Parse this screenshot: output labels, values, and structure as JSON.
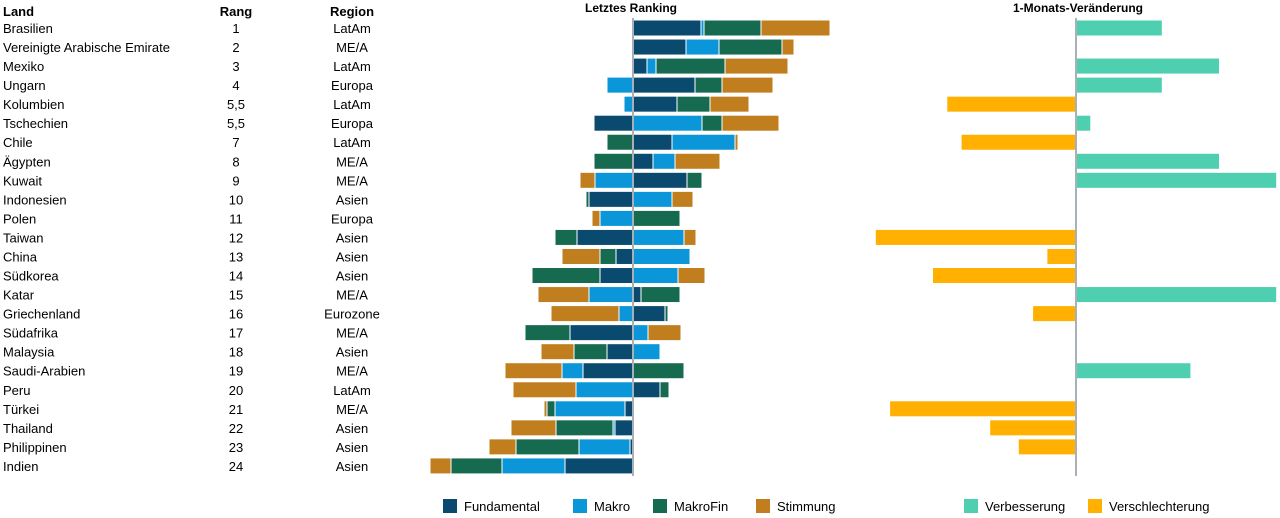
{
  "chart_data": [
    {
      "type": "bar",
      "title": "Letztes Ranking",
      "stacked": true,
      "orientation": "horizontal",
      "columns": {
        "land": "Land",
        "rang": "Rang",
        "region": "Region"
      },
      "categories": [
        "Brasilien",
        "Vereinigte Arabische Emirate",
        "Mexiko",
        "Ungarn",
        "Kolumbien",
        "Tschechien",
        "Chile",
        "Ägypten",
        "Kuwait",
        "Indonesien",
        "Polen",
        "Taiwan",
        "China",
        "Südkorea",
        "Katar",
        "Griechenland",
        "Südafrika",
        "Malaysia",
        "Saudi-Arabien",
        "Peru",
        "Türkei",
        "Thailand",
        "Philippinen",
        "Indien"
      ],
      "rang": [
        "1",
        "2",
        "3",
        "4",
        "5,5",
        "5,5",
        "7",
        "8",
        "9",
        "10",
        "11",
        "12",
        "13",
        "14",
        "15",
        "16",
        "17",
        "18",
        "19",
        "20",
        "21",
        "22",
        "23",
        "24"
      ],
      "region": [
        "LatAm",
        "ME/A",
        "LatAm",
        "Europa",
        "LatAm",
        "Europa",
        "LatAm",
        "ME/A",
        "ME/A",
        "Asien",
        "Europa",
        "Asien",
        "Asien",
        "Asien",
        "ME/A",
        "Eurozone",
        "ME/A",
        "Asien",
        "ME/A",
        "LatAm",
        "ME/A",
        "Asien",
        "Asien",
        "Asien"
      ],
      "series": [
        {
          "name": "Fundamental",
          "color": "#0b4a6f",
          "values": [
            6.8,
            5.3,
            1.4,
            6.2,
            4.4,
            -3.9,
            3.9,
            2.0,
            5.4,
            -4.4,
            0,
            -5.6,
            -1.7,
            -3.3,
            0.8,
            3.2,
            -6.3,
            -2.6,
            -5.0,
            2.7,
            -0.8,
            -1.8,
            -0.3,
            -6.8
          ]
        },
        {
          "name": "Makro",
          "color": "#0a96d8",
          "values": [
            0.3,
            3.3,
            0.9,
            -2.6,
            -0.9,
            6.9,
            6.3,
            2.2,
            -3.8,
            3.9,
            -3.3,
            5.1,
            5.7,
            4.5,
            -4.4,
            -1.4,
            1.5,
            2.7,
            -2.1,
            -5.7,
            -7.0,
            -0.2,
            -5.1,
            -6.3
          ]
        },
        {
          "name": "MakroFin",
          "color": "#166a50",
          "values": [
            5.7,
            6.3,
            6.9,
            2.7,
            3.3,
            2.0,
            -2.6,
            -3.9,
            1.5,
            -0.3,
            4.7,
            -2.2,
            -1.6,
            -6.8,
            3.9,
            0.3,
            -4.5,
            -3.3,
            5.1,
            0.9,
            -0.8,
            -5.7,
            -6.3,
            -5.1
          ]
        },
        {
          "name": "Stimmung",
          "color": "#c07e1e",
          "values": [
            6.9,
            1.2,
            6.3,
            5.1,
            3.9,
            5.7,
            0.3,
            4.5,
            -1.5,
            2.1,
            -0.8,
            1.2,
            -3.8,
            2.7,
            -5.1,
            -6.8,
            3.3,
            -3.3,
            -5.7,
            -6.3,
            -0.3,
            -4.5,
            -2.7,
            -2.1
          ]
        }
      ]
    },
    {
      "type": "bar",
      "title": "1-Monats-Veränderung",
      "orientation": "horizontal",
      "categories": [
        "Brasilien",
        "Vereinigte Arabische Emirate",
        "Mexiko",
        "Ungarn",
        "Kolumbien",
        "Tschechien",
        "Chile",
        "Ägypten",
        "Kuwait",
        "Indonesien",
        "Polen",
        "Taiwan",
        "China",
        "Südkorea",
        "Katar",
        "Griechenland",
        "Südafrika",
        "Malaysia",
        "Saudi-Arabien",
        "Peru",
        "Türkei",
        "Thailand",
        "Philippinen",
        "Indien"
      ],
      "values": [
        6,
        0,
        10,
        6,
        -9,
        1,
        -8,
        10,
        14,
        0,
        0,
        -14,
        -2,
        -10,
        14,
        -3,
        0,
        0,
        8,
        0,
        -13,
        -6,
        -4,
        0
      ],
      "legend": [
        {
          "name": "Verbesserung",
          "color": "#4ecfb0"
        },
        {
          "name": "Verschlechterung",
          "color": "#ffb000"
        }
      ]
    }
  ]
}
